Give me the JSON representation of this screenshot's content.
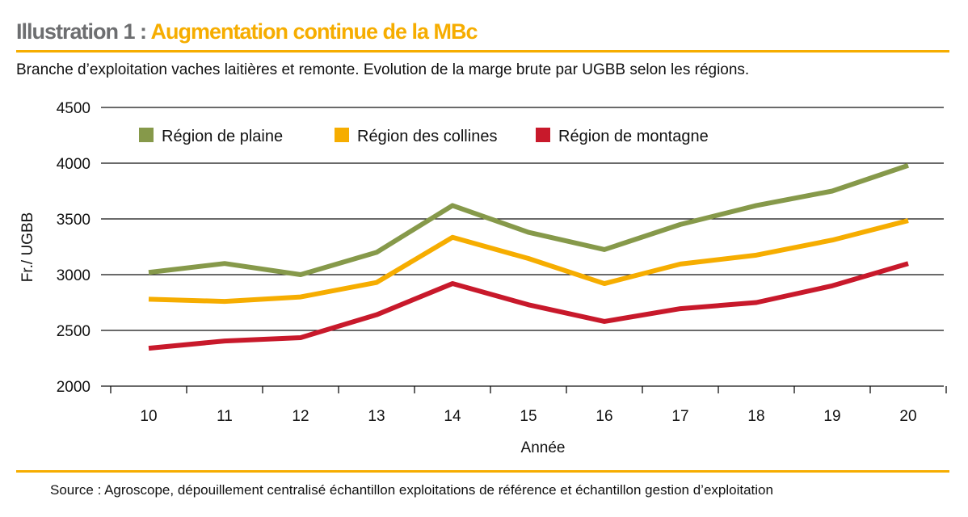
{
  "title_prefix": "Illustration 1 :",
  "title_main": "Augmentation continue de la MBc",
  "subtitle": "Branche d’exploitation vaches laitières et remonte. Evolution de la marge brute par UGBB selon les régions.",
  "source": "Source : Agroscope, dépouillement centralisé échantillon exploitations de référence et échantillon gestion d’exploitation",
  "colors": {
    "accent": "#f6ad00",
    "title_gray": "#6d6e70"
  },
  "chart_data": {
    "type": "line",
    "xlabel": "Année",
    "ylabel": "Fr./ UGBB",
    "ylim": [
      2000,
      4500
    ],
    "yticks": [
      2000,
      2500,
      3000,
      3500,
      4000,
      4500
    ],
    "grid": true,
    "legend_position": "top-left",
    "categories": [
      "10",
      "11",
      "12",
      "13",
      "14",
      "15",
      "16",
      "17",
      "18",
      "19",
      "20"
    ],
    "series": [
      {
        "name": "Région de plaine",
        "color": "#86994a",
        "values": [
          3020,
          3100,
          3000,
          3200,
          3620,
          3380,
          3225,
          3450,
          3620,
          3750,
          3980
        ]
      },
      {
        "name": "Région des collines",
        "color": "#f6ad00",
        "values": [
          2780,
          2760,
          2800,
          2930,
          3335,
          3145,
          2920,
          3095,
          3175,
          3310,
          3485
        ]
      },
      {
        "name": "Région de montagne",
        "color": "#c8192b",
        "values": [
          2340,
          2405,
          2435,
          2640,
          2920,
          2730,
          2580,
          2695,
          2750,
          2900,
          3100
        ]
      }
    ]
  }
}
